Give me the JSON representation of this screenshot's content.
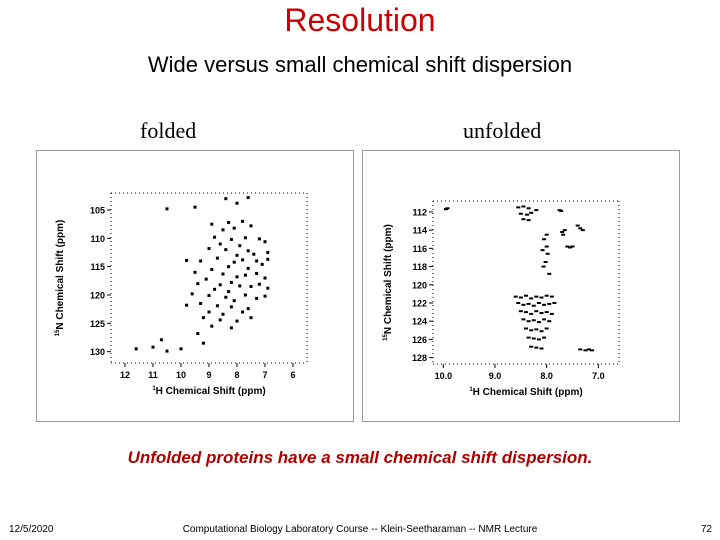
{
  "slide": {
    "title": "Resolution",
    "subtitle": "Wide versus small chemical shift dispersion",
    "panel_labels": [
      "folded",
      "unfolded"
    ],
    "caption": "Unfolded proteins have a small chemical shift dispersion.",
    "footer": {
      "date": "12/5/2020",
      "course": "Computational Biology Laboratory Course -- Klein-Seetharaman -- NMR Lecture",
      "page": "72"
    }
  },
  "chart_data": [
    {
      "type": "scatter",
      "name": "folded",
      "xlabel_sup": "1",
      "xlabel": "H Chemical Shift (ppm)",
      "ylabel_sup": "15",
      "ylabel": "N Chemical Shift (ppm)",
      "xlim": [
        12.5,
        5.5
      ],
      "ylim": [
        102,
        132
      ],
      "x_ticks": [
        12,
        11,
        10,
        9,
        8,
        7,
        6
      ],
      "y_ticks": [
        105,
        110,
        115,
        120,
        125,
        130
      ],
      "points": [
        [
          10.5,
          104.8
        ],
        [
          9.5,
          104.5
        ],
        [
          8.0,
          103.8
        ],
        [
          7.6,
          102.8
        ],
        [
          8.4,
          103.0
        ],
        [
          8.9,
          107.5
        ],
        [
          8.3,
          107.2
        ],
        [
          7.8,
          107.0
        ],
        [
          8.5,
          108.5
        ],
        [
          8.1,
          108.2
        ],
        [
          7.5,
          107.8
        ],
        [
          8.8,
          109.8
        ],
        [
          8.2,
          110.2
        ],
        [
          7.7,
          109.9
        ],
        [
          7.2,
          110.1
        ],
        [
          7.0,
          110.6
        ],
        [
          8.6,
          111.0
        ],
        [
          7.9,
          111.3
        ],
        [
          9.0,
          111.8
        ],
        [
          8.4,
          112.0
        ],
        [
          7.6,
          112.2
        ],
        [
          7.4,
          112.8
        ],
        [
          6.9,
          112.5
        ],
        [
          8.0,
          113.0
        ],
        [
          9.8,
          113.9
        ],
        [
          9.3,
          114.0
        ],
        [
          8.7,
          113.5
        ],
        [
          8.1,
          114.2
        ],
        [
          7.8,
          113.8
        ],
        [
          7.3,
          114.0
        ],
        [
          7.1,
          114.6
        ],
        [
          6.9,
          113.7
        ],
        [
          8.3,
          115.0
        ],
        [
          7.6,
          115.3
        ],
        [
          8.9,
          115.5
        ],
        [
          9.5,
          116.0
        ],
        [
          8.5,
          116.3
        ],
        [
          8.0,
          116.8
        ],
        [
          7.7,
          116.5
        ],
        [
          7.3,
          116.2
        ],
        [
          7.0,
          117.0
        ],
        [
          9.1,
          117.2
        ],
        [
          9.4,
          118.0
        ],
        [
          8.6,
          118.2
        ],
        [
          8.2,
          117.8
        ],
        [
          7.9,
          118.4
        ],
        [
          7.5,
          118.5
        ],
        [
          7.2,
          118.1
        ],
        [
          6.9,
          118.8
        ],
        [
          8.8,
          119.0
        ],
        [
          8.3,
          119.4
        ],
        [
          9.6,
          119.8
        ],
        [
          9.0,
          120.1
        ],
        [
          8.4,
          120.4
        ],
        [
          7.7,
          120.0
        ],
        [
          7.3,
          120.6
        ],
        [
          7.0,
          120.2
        ],
        [
          8.1,
          121.0
        ],
        [
          9.8,
          121.8
        ],
        [
          9.3,
          121.5
        ],
        [
          8.7,
          121.9
        ],
        [
          8.2,
          122.1
        ],
        [
          7.6,
          122.4
        ],
        [
          9.0,
          123.0
        ],
        [
          8.5,
          123.4
        ],
        [
          7.8,
          123.0
        ],
        [
          9.2,
          124.0
        ],
        [
          8.6,
          124.4
        ],
        [
          8.0,
          124.6
        ],
        [
          7.5,
          124.0
        ],
        [
          8.9,
          125.5
        ],
        [
          8.2,
          125.8
        ],
        [
          9.4,
          126.8
        ],
        [
          11.6,
          129.5
        ],
        [
          11.0,
          129.2
        ],
        [
          10.5,
          129.9
        ],
        [
          10.0,
          129.5
        ],
        [
          10.7,
          127.9
        ],
        [
          9.2,
          128.5
        ]
      ]
    },
    {
      "type": "scatter",
      "name": "unfolded",
      "xlabel_sup": "1",
      "xlabel": "H Chemical Shift (ppm)",
      "ylabel_sup": "15",
      "ylabel": "N Chemical Shift (ppm)",
      "xlim": [
        10.2,
        6.6
      ],
      "ylim": [
        110.8,
        128.7
      ],
      "x_ticks": [
        10.0,
        9.0,
        8.0,
        7.0
      ],
      "x_tick_labels": [
        "10.0",
        "9.0",
        "8.0",
        "7.0"
      ],
      "y_ticks": [
        112,
        114,
        116,
        118,
        120,
        122,
        124,
        126,
        128
      ],
      "points": [
        [
          9.95,
          111.7
        ],
        [
          9.92,
          111.6
        ],
        [
          8.55,
          111.5
        ],
        [
          8.45,
          111.4
        ],
        [
          8.35,
          111.6
        ],
        [
          8.5,
          112.2
        ],
        [
          8.38,
          112.3
        ],
        [
          8.3,
          112.1
        ],
        [
          8.45,
          112.8
        ],
        [
          8.35,
          112.9
        ],
        [
          8.2,
          111.8
        ],
        [
          7.75,
          111.8
        ],
        [
          7.72,
          111.9
        ],
        [
          8.0,
          114.5
        ],
        [
          8.05,
          115.0
        ],
        [
          8.0,
          115.8
        ],
        [
          8.08,
          116.2
        ],
        [
          7.98,
          116.6
        ],
        [
          8.02,
          117.5
        ],
        [
          8.06,
          118.0
        ],
        [
          7.95,
          118.8
        ],
        [
          7.7,
          114.2
        ],
        [
          7.65,
          114.0
        ],
        [
          7.68,
          114.5
        ],
        [
          7.4,
          113.5
        ],
        [
          7.35,
          113.8
        ],
        [
          7.3,
          114.0
        ],
        [
          7.6,
          115.8
        ],
        [
          7.55,
          115.9
        ],
        [
          7.5,
          115.8
        ],
        [
          8.6,
          121.3
        ],
        [
          8.5,
          121.4
        ],
        [
          8.4,
          121.2
        ],
        [
          8.3,
          121.5
        ],
        [
          8.2,
          121.3
        ],
        [
          8.1,
          121.4
        ],
        [
          8.0,
          121.2
        ],
        [
          7.9,
          121.3
        ],
        [
          8.55,
          122.0
        ],
        [
          8.45,
          122.2
        ],
        [
          8.35,
          122.1
        ],
        [
          8.25,
          122.3
        ],
        [
          8.15,
          122.0
        ],
        [
          8.05,
          122.2
        ],
        [
          7.95,
          122.1
        ],
        [
          7.85,
          122.0
        ],
        [
          8.5,
          122.9
        ],
        [
          8.4,
          123.0
        ],
        [
          8.3,
          123.2
        ],
        [
          8.2,
          122.9
        ],
        [
          8.1,
          123.1
        ],
        [
          8.0,
          123.0
        ],
        [
          7.9,
          123.2
        ],
        [
          8.45,
          123.8
        ],
        [
          8.35,
          124.0
        ],
        [
          8.25,
          123.9
        ],
        [
          8.15,
          124.1
        ],
        [
          8.05,
          123.8
        ],
        [
          7.95,
          124.0
        ],
        [
          8.4,
          124.8
        ],
        [
          8.3,
          125.0
        ],
        [
          8.2,
          124.9
        ],
        [
          8.1,
          125.1
        ],
        [
          8.0,
          124.8
        ],
        [
          8.35,
          125.8
        ],
        [
          8.25,
          125.9
        ],
        [
          8.15,
          126.0
        ],
        [
          8.05,
          125.8
        ],
        [
          8.3,
          126.8
        ],
        [
          8.2,
          126.9
        ],
        [
          8.1,
          127.0
        ],
        [
          7.35,
          127.1
        ],
        [
          7.25,
          127.2
        ],
        [
          7.18,
          127.1
        ],
        [
          7.12,
          127.2
        ]
      ]
    }
  ]
}
